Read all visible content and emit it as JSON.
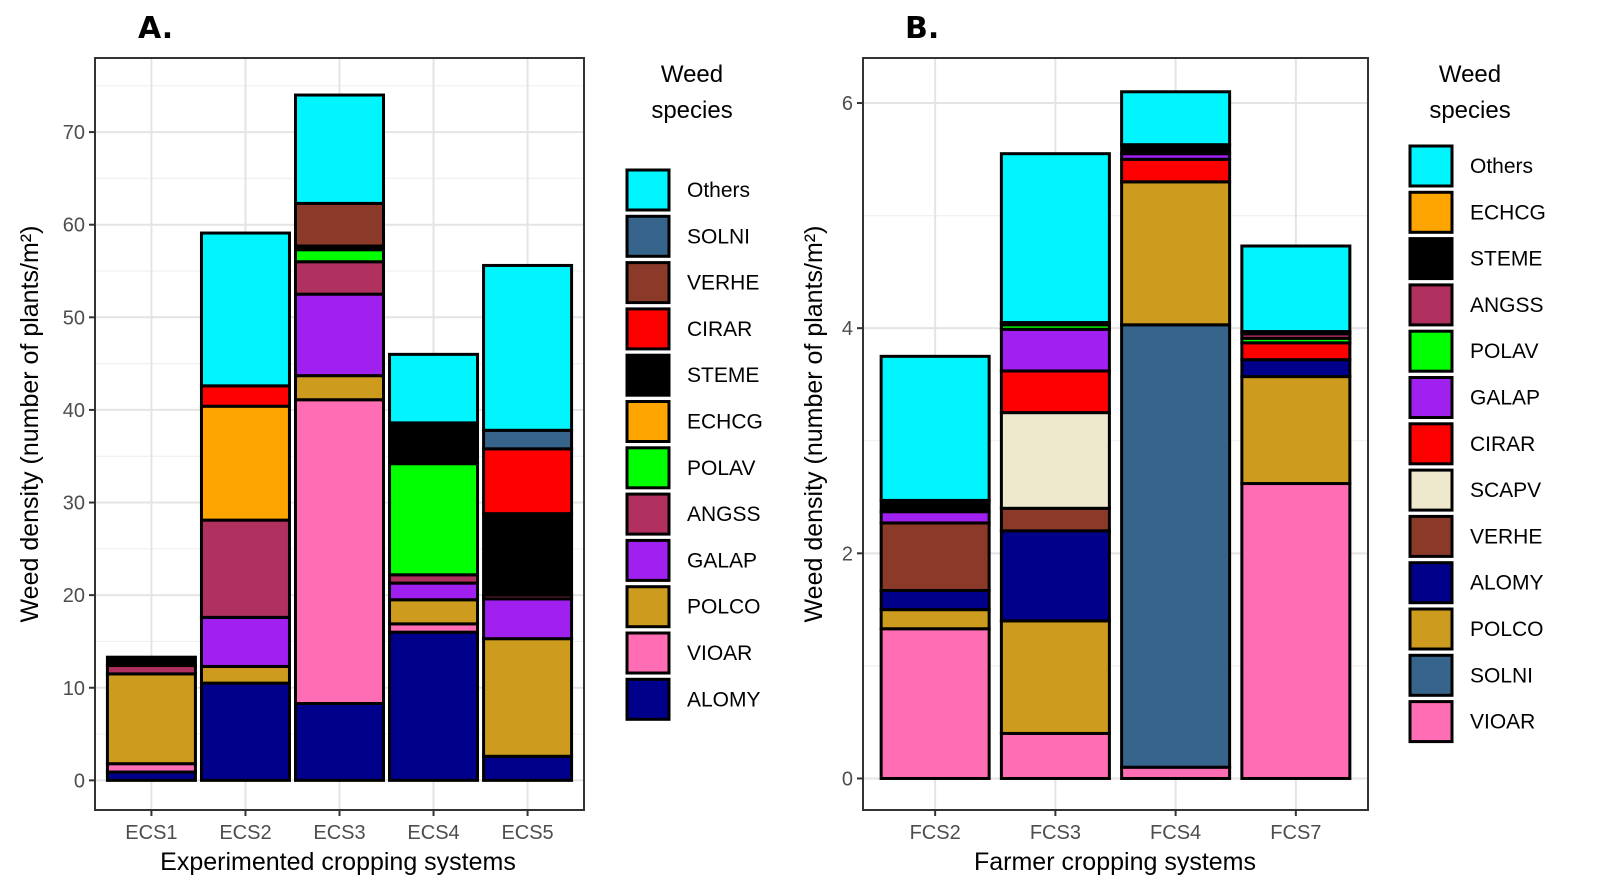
{
  "colors": {
    "Others": "#00F5FF",
    "SOLNI": "#36648B",
    "VERHE": "#8B3A2A",
    "CIRAR": "#FF0000",
    "STEME": "#000000",
    "ECHCG": "#FFA500",
    "POLAV": "#00FF00",
    "ANGSS": "#B03060",
    "GALAP": "#A020F0",
    "POLCO": "#CD9B1D",
    "VIOAR": "#FF6EB4",
    "ALOMY": "#00008B",
    "SCAPV": "#EEE8CD"
  },
  "chart_data": [
    {
      "type": "bar",
      "stacked": true,
      "panel_label": "A.",
      "xlabel": "Experimented cropping systems",
      "ylabel": "Weed density (number of plants/m²)",
      "categories": [
        "ECS1",
        "ECS2",
        "ECS3",
        "ECS4",
        "ECS5"
      ],
      "ylim": [
        -3.2,
        78
      ],
      "yticks": [
        0,
        10,
        20,
        30,
        40,
        50,
        60,
        70
      ],
      "grid": true,
      "legend_title": "Weed species",
      "legend_position": "right",
      "legend": [
        "Others",
        "SOLNI",
        "VERHE",
        "CIRAR",
        "STEME",
        "ECHCG",
        "POLAV",
        "ANGSS",
        "GALAP",
        "POLCO",
        "VIOAR",
        "ALOMY"
      ],
      "stack_order": [
        "ALOMY",
        "VIOAR",
        "POLCO",
        "GALAP",
        "ANGSS",
        "POLAV",
        "ECHCG",
        "STEME",
        "CIRAR",
        "VERHE",
        "SOLNI",
        "Others"
      ],
      "series": [
        {
          "name": "ALOMY",
          "values": [
            0.9,
            10.5,
            8.3,
            16.0,
            2.6
          ]
        },
        {
          "name": "VIOAR",
          "values": [
            0.9,
            0.0,
            32.8,
            0.9,
            0.0
          ]
        },
        {
          "name": "POLCO",
          "values": [
            9.7,
            1.8,
            2.6,
            2.6,
            12.7
          ]
        },
        {
          "name": "GALAP",
          "values": [
            0.0,
            5.3,
            8.8,
            1.8,
            4.3
          ]
        },
        {
          "name": "ANGSS",
          "values": [
            0.9,
            10.5,
            3.5,
            0.9,
            0.4
          ]
        },
        {
          "name": "POLAV",
          "values": [
            0.0,
            0.0,
            1.3,
            12.0,
            0.0
          ]
        },
        {
          "name": "ECHCG",
          "values": [
            0.0,
            12.3,
            0.0,
            0.0,
            0.0
          ]
        },
        {
          "name": "STEME",
          "values": [
            0.9,
            0.0,
            0.4,
            4.4,
            8.8
          ]
        },
        {
          "name": "CIRAR",
          "values": [
            0.0,
            2.2,
            0.0,
            0.0,
            7.0
          ]
        },
        {
          "name": "VERHE",
          "values": [
            0.0,
            0.0,
            4.6,
            0.0,
            0.0
          ]
        },
        {
          "name": "SOLNI",
          "values": [
            0.0,
            0.0,
            0.0,
            0.0,
            2.0
          ]
        },
        {
          "name": "Others",
          "values": [
            0.0,
            16.5,
            11.7,
            7.4,
            17.8
          ]
        }
      ]
    },
    {
      "type": "bar",
      "stacked": true,
      "panel_label": "B.",
      "xlabel": "Farmer cropping systems",
      "ylabel": "Weed density (number of plants/m²)",
      "categories": [
        "FCS2",
        "FCS3",
        "FCS4",
        "FCS7"
      ],
      "ylim": [
        -0.28,
        6.4
      ],
      "yticks": [
        0,
        2,
        4,
        6
      ],
      "grid": true,
      "legend_title": "Weed species",
      "legend_position": "right",
      "legend": [
        "Others",
        "ECHCG",
        "STEME",
        "ANGSS",
        "POLAV",
        "GALAP",
        "CIRAR",
        "SCAPV",
        "VERHE",
        "ALOMY",
        "POLCO",
        "SOLNI",
        "VIOAR"
      ],
      "stack_order": [
        "VIOAR",
        "SOLNI",
        "POLCO",
        "ALOMY",
        "VERHE",
        "SCAPV",
        "CIRAR",
        "GALAP",
        "POLAV",
        "ANGSS",
        "STEME",
        "ECHCG",
        "Others"
      ],
      "series": [
        {
          "name": "VIOAR",
          "values": [
            1.33,
            0.4,
            0.1,
            2.62
          ]
        },
        {
          "name": "SOLNI",
          "values": [
            0.0,
            0.0,
            3.93,
            0.0
          ]
        },
        {
          "name": "POLCO",
          "values": [
            0.17,
            1.0,
            1.27,
            0.95
          ]
        },
        {
          "name": "ALOMY",
          "values": [
            0.17,
            0.8,
            0.0,
            0.15
          ]
        },
        {
          "name": "VERHE",
          "values": [
            0.6,
            0.2,
            0.0,
            0.0
          ]
        },
        {
          "name": "SCAPV",
          "values": [
            0.0,
            0.85,
            0.0,
            0.0
          ]
        },
        {
          "name": "CIRAR",
          "values": [
            0.0,
            0.37,
            0.2,
            0.15
          ]
        },
        {
          "name": "GALAP",
          "values": [
            0.1,
            0.37,
            0.05,
            0.0
          ]
        },
        {
          "name": "POLAV",
          "values": [
            0.0,
            0.04,
            0.0,
            0.04
          ]
        },
        {
          "name": "ANGSS",
          "values": [
            0.0,
            0.0,
            0.0,
            0.04
          ]
        },
        {
          "name": "STEME",
          "values": [
            0.1,
            0.02,
            0.08,
            0.02
          ]
        },
        {
          "name": "ECHCG",
          "values": [
            0.0,
            0.0,
            0.0,
            0.0
          ]
        },
        {
          "name": "Others",
          "values": [
            1.28,
            1.5,
            0.47,
            0.76
          ]
        }
      ]
    }
  ]
}
